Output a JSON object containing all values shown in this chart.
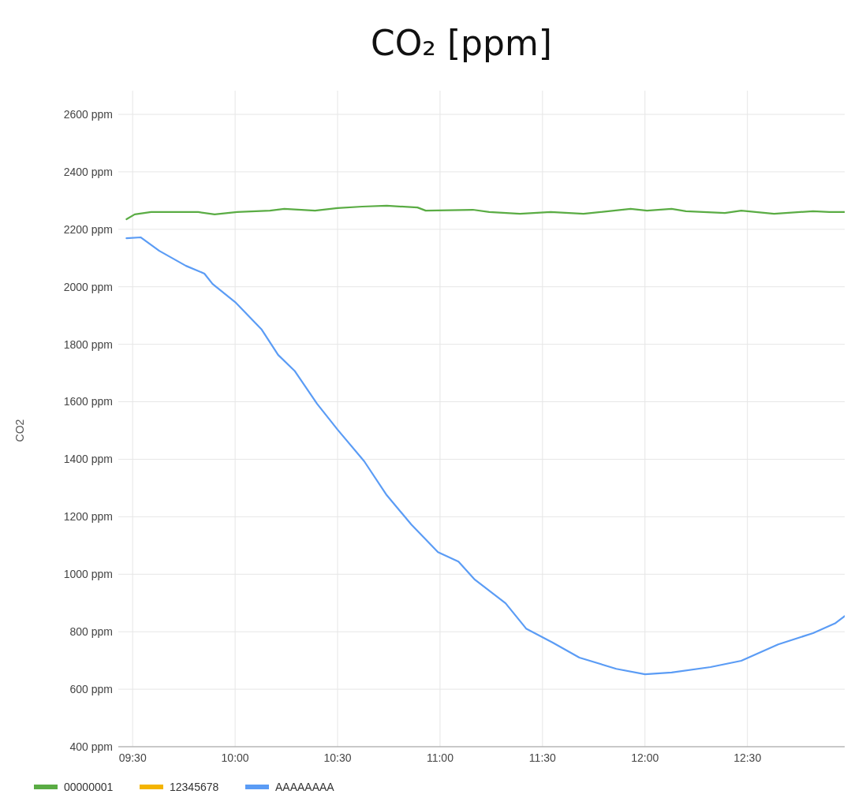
{
  "chart_data": {
    "type": "line",
    "title": "CO₂ [ppm]",
    "ylabel": "CO2",
    "xlim": [
      9.43,
      12.99
    ],
    "ylim": [
      400,
      2600
    ],
    "xticks": [
      {
        "value": 9.5,
        "label": "09:30"
      },
      {
        "value": 10,
        "label": "10:00"
      },
      {
        "value": 10.5,
        "label": "10:30"
      },
      {
        "value": 11,
        "label": "11:00"
      },
      {
        "value": 11.5,
        "label": "11:30"
      },
      {
        "value": 12,
        "label": "12:00"
      },
      {
        "value": 12.5,
        "label": "12:30"
      }
    ],
    "yticks": [
      {
        "value": 400,
        "label": "400 ppm"
      },
      {
        "value": 600,
        "label": "600 ppm"
      },
      {
        "value": 800,
        "label": "800 ppm"
      },
      {
        "value": 1000,
        "label": "1000 ppm"
      },
      {
        "value": 1200,
        "label": "1200 ppm"
      },
      {
        "value": 1400,
        "label": "1400 ppm"
      },
      {
        "value": 1600,
        "label": "1600 ppm"
      },
      {
        "value": 1800,
        "label": "1800 ppm"
      },
      {
        "value": 2000,
        "label": "2000 ppm"
      },
      {
        "value": 2200,
        "label": "2200 ppm"
      },
      {
        "value": 2400,
        "label": "2400 ppm"
      },
      {
        "value": 2600,
        "label": "2600 ppm"
      }
    ],
    "grid": true,
    "legend": "bottom left",
    "marker": "none",
    "line_style": "solid",
    "series": [
      {
        "name": "00000001",
        "color": "#5aac44",
        "x": [
          9.47,
          9.51,
          9.59,
          9.82,
          9.9,
          10.01,
          10.17,
          10.24,
          10.39,
          10.5,
          10.62,
          10.74,
          10.89,
          10.93,
          11.16,
          11.24,
          11.39,
          11.54,
          11.7,
          11.93,
          12.01,
          12.13,
          12.2,
          12.39,
          12.47,
          12.63,
          12.82,
          12.9,
          12.99
        ],
        "values": [
          2235,
          2252,
          2260,
          2260,
          2252,
          2260,
          2265,
          2271,
          2265,
          2274,
          2279,
          2282,
          2276,
          2265,
          2268,
          2260,
          2254,
          2260,
          2254,
          2271,
          2265,
          2271,
          2263,
          2257,
          2265,
          2254,
          2263,
          2260,
          2260
        ]
      },
      {
        "name": "12345678",
        "color": "#f4b400"
      },
      {
        "name": "AAAAAAAA",
        "color": "#5b9cf5",
        "x": [
          9.47,
          9.54,
          9.63,
          9.76,
          9.85,
          9.89,
          10.0,
          10.13,
          10.21,
          10.29,
          10.4,
          10.5,
          10.63,
          10.74,
          10.86,
          10.99,
          11.09,
          11.17,
          11.32,
          11.42,
          11.55,
          11.68,
          11.86,
          12.0,
          12.13,
          12.32,
          12.47,
          12.65,
          12.82,
          12.93,
          12.99
        ],
        "values": [
          2169,
          2172,
          2125,
          2073,
          2046,
          2010,
          1947,
          1851,
          1763,
          1708,
          1593,
          1503,
          1393,
          1275,
          1173,
          1077,
          1044,
          981,
          899,
          811,
          762,
          710,
          671,
          652,
          658,
          677,
          699,
          756,
          795,
          830,
          863
        ]
      }
    ]
  }
}
